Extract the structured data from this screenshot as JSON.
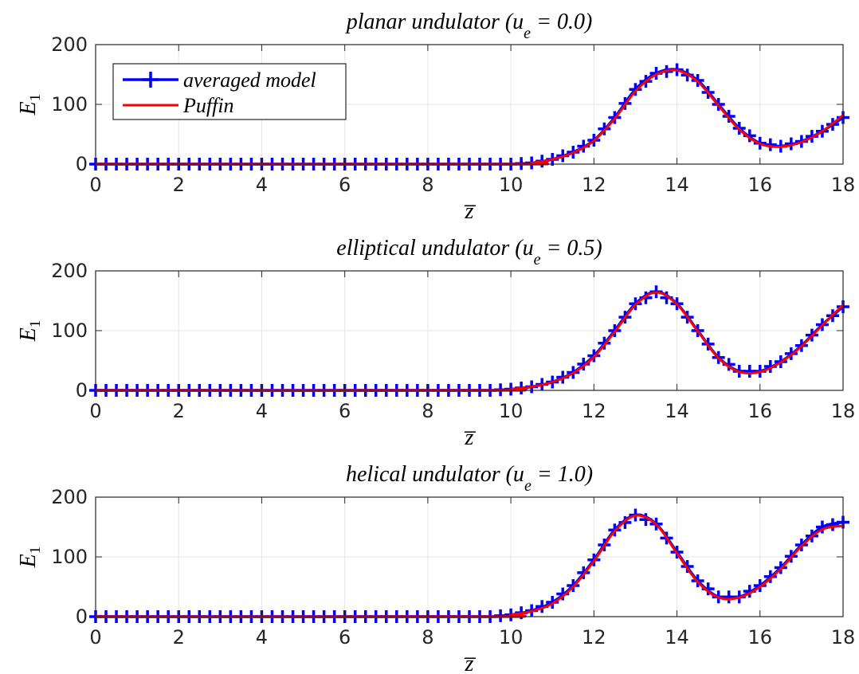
{
  "chart_data": [
    {
      "type": "line",
      "title": "planar undulator (u",
      "title_sub": "e",
      "title_rest": " = 0.0)",
      "xlabel": "z̅",
      "ylabel": "E",
      "ylabel_sub": "1",
      "xlim": [
        0,
        18
      ],
      "ylim": [
        0,
        200
      ],
      "xticks": [
        "0",
        "2",
        "4",
        "6",
        "8",
        "10",
        "12",
        "14",
        "16",
        "18"
      ],
      "yticks": [
        "0",
        "100",
        "200"
      ],
      "grid": true,
      "legend": {
        "position": "top-left",
        "entries": [
          "averaged model",
          "Puffin"
        ]
      },
      "series": [
        {
          "name": "averaged model",
          "color": "#0000ff",
          "marker": "plus",
          "x": [
            0,
            10,
            10.5,
            11,
            11.5,
            12,
            12.5,
            13,
            13.5,
            14,
            14.5,
            15,
            15.5,
            16,
            16.5,
            17,
            17.5,
            18
          ],
          "y": [
            0,
            0,
            2,
            8,
            20,
            40,
            78,
            125,
            152,
            158,
            140,
            100,
            60,
            35,
            30,
            38,
            55,
            78
          ]
        },
        {
          "name": "Puffin",
          "color": "#ff0000",
          "x": [
            0,
            10,
            10.5,
            11,
            11.5,
            12,
            12.5,
            13,
            13.5,
            14,
            14.5,
            15,
            15.5,
            16,
            16.5,
            17,
            17.5,
            18
          ],
          "y": [
            0,
            0,
            2,
            8,
            19,
            39,
            76,
            122,
            150,
            157,
            138,
            98,
            58,
            34,
            29,
            37,
            55,
            82
          ]
        }
      ]
    },
    {
      "type": "line",
      "title": "elliptical undulator (u",
      "title_sub": "e",
      "title_rest": " = 0.5)",
      "xlabel": "z̅",
      "ylabel": "E",
      "ylabel_sub": "1",
      "xlim": [
        0,
        18
      ],
      "ylim": [
        0,
        200
      ],
      "xticks": [
        "0",
        "2",
        "4",
        "6",
        "8",
        "10",
        "12",
        "14",
        "16",
        "18"
      ],
      "yticks": [
        "0",
        "100",
        "200"
      ],
      "grid": true,
      "series": [
        {
          "name": "averaged model",
          "color": "#0000ff",
          "marker": "plus",
          "x": [
            0,
            9.5,
            10,
            10.5,
            11,
            11.5,
            12,
            12.5,
            13,
            13.5,
            14,
            14.5,
            15,
            15.5,
            16,
            16.5,
            17,
            17.5,
            18
          ],
          "y": [
            0,
            0,
            2,
            6,
            14,
            30,
            58,
            100,
            145,
            165,
            145,
            100,
            55,
            32,
            32,
            48,
            75,
            110,
            140
          ]
        },
        {
          "name": "Puffin",
          "color": "#ff0000",
          "x": [
            0,
            9.5,
            10,
            10.5,
            11,
            11.5,
            12,
            12.5,
            13,
            13.5,
            14,
            14.5,
            15,
            15.5,
            16,
            16.5,
            17,
            17.5,
            18
          ],
          "y": [
            0,
            0,
            2,
            6,
            14,
            29,
            56,
            98,
            143,
            164,
            144,
            99,
            54,
            31,
            31,
            47,
            74,
            109,
            143
          ]
        }
      ]
    },
    {
      "type": "line",
      "title": "helical undulator (u",
      "title_sub": "e",
      "title_rest": " = 1.0)",
      "xlabel": "z̅",
      "ylabel": "E",
      "ylabel_sub": "1",
      "xlim": [
        0,
        18
      ],
      "ylim": [
        0,
        200
      ],
      "xticks": [
        "0",
        "2",
        "4",
        "6",
        "8",
        "10",
        "12",
        "14",
        "16",
        "18"
      ],
      "yticks": [
        "0",
        "100",
        "200"
      ],
      "grid": true,
      "series": [
        {
          "name": "averaged model",
          "color": "#0000ff",
          "marker": "plus",
          "x": [
            0,
            9.5,
            10,
            10.5,
            11,
            11.5,
            12,
            12.5,
            13,
            13.5,
            14,
            14.5,
            15,
            15.5,
            16,
            16.5,
            17,
            17.5,
            18
          ],
          "y": [
            0,
            0,
            3,
            10,
            24,
            52,
            95,
            145,
            170,
            155,
            108,
            60,
            33,
            33,
            52,
            82,
            120,
            150,
            158
          ]
        },
        {
          "name": "Puffin",
          "color": "#ff0000",
          "x": [
            0,
            9.5,
            10,
            10.5,
            11,
            11.5,
            12,
            12.5,
            13,
            13.5,
            14,
            14.5,
            15,
            15.5,
            16,
            16.5,
            17,
            17.5,
            18
          ],
          "y": [
            0,
            0,
            3,
            9,
            22,
            50,
            93,
            143,
            169,
            154,
            106,
            58,
            32,
            32,
            50,
            80,
            118,
            146,
            152
          ]
        }
      ]
    }
  ]
}
